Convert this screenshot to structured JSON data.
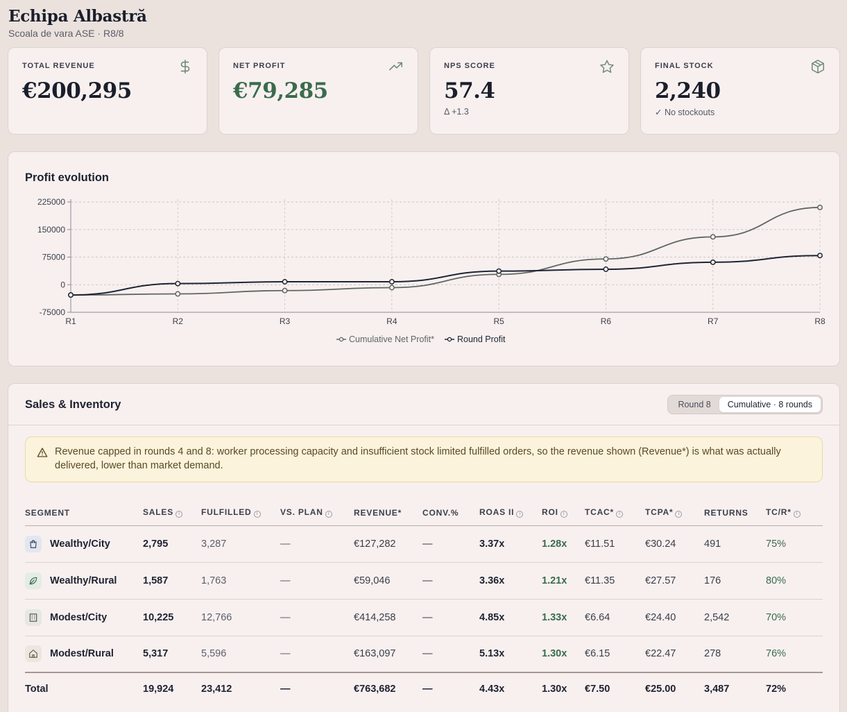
{
  "team": {
    "name": "Echipa Albastră",
    "subtitle": "Scoala de vara ASE · R8/8"
  },
  "kpis": [
    {
      "label": "TOTAL REVENUE",
      "value": "€200,295",
      "note": "",
      "icon": "dollar-icon"
    },
    {
      "label": "NET PROFIT",
      "value": "€79,285",
      "note": "",
      "icon": "trending-up-icon"
    },
    {
      "label": "NPS SCORE",
      "value": "57.4",
      "note": "Δ +1.3",
      "icon": "star-icon"
    },
    {
      "label": "FINAL STOCK",
      "value": "2,240",
      "note": "✓ No stockouts",
      "icon": "box-icon"
    }
  ],
  "chart": {
    "title": "Profit evolution"
  },
  "chart_data": {
    "type": "line",
    "title": "Profit evolution",
    "categories": [
      "R1",
      "R2",
      "R3",
      "R4",
      "R5",
      "R6",
      "R7",
      "R8"
    ],
    "yticks": [
      225000,
      150000,
      75000,
      0,
      -75000
    ],
    "ylim": [
      -75000,
      225000
    ],
    "grid": true,
    "legend": "bottom",
    "series": [
      {
        "name": "Cumulative Net Profit*",
        "color": "#5f6662",
        "values": [
          -28000,
          -25000,
          -16000,
          -8000,
          28000,
          70000,
          130000,
          210000
        ]
      },
      {
        "name": "Round Profit",
        "color": "#1f2433",
        "values": [
          -28000,
          3000,
          8000,
          8000,
          37000,
          42000,
          61000,
          79285
        ]
      }
    ]
  },
  "sales": {
    "title": "Sales & Inventory",
    "toggle": {
      "round": "Round 8",
      "cumulative": "Cumulative · 8 rounds"
    },
    "alert": "Revenue capped in rounds 4 and 8: worker processing capacity and insufficient stock limited fulfilled orders, so the revenue shown (Revenue*) is what was actually delivered, lower than market demand.",
    "columns": [
      "SEGMENT",
      "SALES",
      "FULFILLED",
      "VS. PLAN",
      "REVENUE*",
      "CONV.%",
      "ROAS II",
      "ROI",
      "TCAC*",
      "TCPA*",
      "RETURNS",
      "TC/R*"
    ],
    "rows": [
      {
        "segment": "Wealthy/City",
        "icon": "shopping-bag-icon",
        "iconBg": "#e3e6ee",
        "sales": "2,795",
        "fulfilled": "3,287",
        "plan": "—",
        "revenue": "€127,282",
        "conv": "—",
        "roas": "3.37x",
        "roi": "1.28x",
        "tcac": "€11.51",
        "tcpa": "€30.24",
        "returns": "491",
        "tcr": "75%"
      },
      {
        "segment": "Wealthy/Rural",
        "icon": "leaf-icon",
        "iconBg": "#e3ece5",
        "sales": "1,587",
        "fulfilled": "1,763",
        "plan": "—",
        "revenue": "€59,046",
        "conv": "—",
        "roas": "3.36x",
        "roi": "1.21x",
        "tcac": "€11.35",
        "tcpa": "€27.57",
        "returns": "176",
        "tcr": "80%"
      },
      {
        "segment": "Modest/City",
        "icon": "building-icon",
        "iconBg": "#e6e7e3",
        "sales": "10,225",
        "fulfilled": "12,766",
        "plan": "—",
        "revenue": "€414,258",
        "conv": "—",
        "roas": "4.85x",
        "roi": "1.33x",
        "tcac": "€6.64",
        "tcpa": "€24.40",
        "returns": "2,542",
        "tcr": "70%"
      },
      {
        "segment": "Modest/Rural",
        "icon": "house-icon",
        "iconBg": "#ece6e0",
        "sales": "5,317",
        "fulfilled": "5,596",
        "plan": "—",
        "revenue": "€163,097",
        "conv": "—",
        "roas": "5.13x",
        "roi": "1.30x",
        "tcac": "€6.15",
        "tcpa": "€22.47",
        "returns": "278",
        "tcr": "76%"
      }
    ],
    "total": {
      "segment": "Total",
      "sales": "19,924",
      "fulfilled": "23,412",
      "plan": "—",
      "revenue": "€763,682",
      "conv": "—",
      "roas": "4.43x",
      "roi": "1.30x",
      "tcac": "€7.50",
      "tcpa": "€25.00",
      "returns": "3,487",
      "tcr": "72%"
    }
  }
}
